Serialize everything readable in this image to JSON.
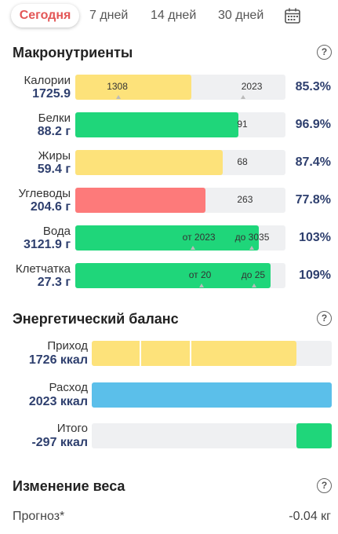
{
  "tabs": [
    {
      "label": "Сегодня",
      "active": true
    },
    {
      "label": "7 дней"
    },
    {
      "label": "14 дней"
    },
    {
      "label": "30 дней"
    }
  ],
  "calendar_icon": "calendar-icon",
  "help_icon": "help-circle-icon",
  "macros": {
    "title": "Макронутриенты",
    "items": [
      {
        "name": "Калории",
        "amount": "1725.9",
        "percent": "85.3%",
        "fill": 0.551,
        "color": "#fde27a",
        "labels": [
          {
            "text": "1308",
            "at": 0.15
          },
          {
            "text": "2023",
            "at": 0.79
          }
        ],
        "ticks": [
          0.205,
          0.797
        ]
      },
      {
        "name": "Белки",
        "amount": "88.2 г",
        "percent": "96.9%",
        "fill": 0.776,
        "color": "#1fd67a",
        "labels": [
          {
            "text": "91",
            "at": 0.77
          }
        ],
        "ticks": []
      },
      {
        "name": "Жиры",
        "amount": "59.4 г",
        "percent": "87.4%",
        "fill": 0.701,
        "color": "#fde27a",
        "labels": [
          {
            "text": "68",
            "at": 0.77
          }
        ],
        "ticks": []
      },
      {
        "name": "Углеводы",
        "amount": "204.6 г",
        "percent": "77.8%",
        "fill": 0.62,
        "color": "#fd7a7a",
        "labels": [
          {
            "text": "263",
            "at": 0.77
          }
        ],
        "ticks": []
      },
      {
        "name": "Вода",
        "amount": "3121.9 г",
        "percent": "103%",
        "fill": 0.873,
        "color": "#1fd67a",
        "labels": [
          {
            "text": "от 2023",
            "at": 0.51
          },
          {
            "text": "до 3035",
            "at": 0.76
          }
        ],
        "ticks": [
          0.56,
          0.84
        ]
      },
      {
        "name": "Клетчатка",
        "amount": "27.3 г",
        "percent": "109%",
        "fill": 0.93,
        "color": "#1fd67a",
        "labels": [
          {
            "text": "от 20",
            "at": 0.54
          },
          {
            "text": "до 25",
            "at": 0.79
          }
        ],
        "ticks": [
          0.6,
          0.85
        ]
      }
    ]
  },
  "energy": {
    "title": "Энергетический баланс",
    "items": [
      {
        "name": "Приход",
        "amount": "1726 ккал",
        "fill": 0.853,
        "offset": 0,
        "color": "#fde27a",
        "seps": [
          0.2,
          0.41
        ]
      },
      {
        "name": "Расход",
        "amount": "2023 ккал",
        "fill": 1.0,
        "offset": 0,
        "color": "#5bbfea",
        "seps": []
      },
      {
        "name": "Итого",
        "amount": "-297 ккал",
        "fill": 0.147,
        "offset": 0.853,
        "color": "#1fd67a",
        "seps": []
      }
    ]
  },
  "weight": {
    "title": "Изменение веса",
    "forecast_label": "Прогноз*",
    "forecast_value": "-0.04 кг"
  }
}
